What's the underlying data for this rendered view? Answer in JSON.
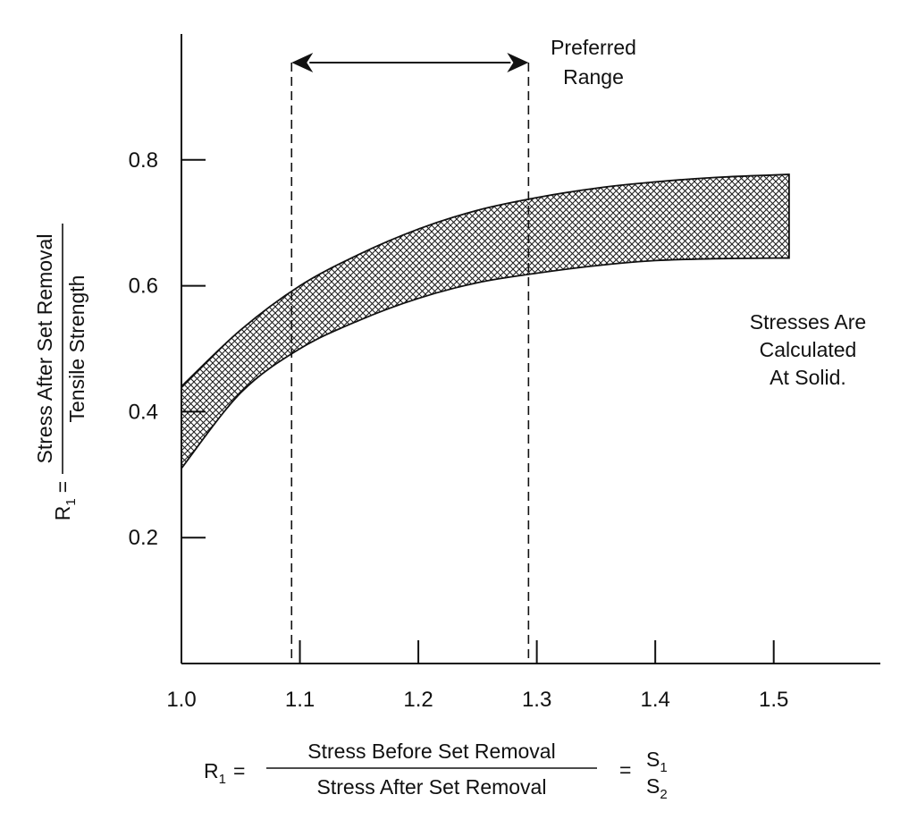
{
  "chart_data": {
    "type": "area",
    "x_ticks": [
      "1.0",
      "1.1",
      "1.2",
      "1.3",
      "1.4",
      "1.5"
    ],
    "y_ticks": [
      "0.2",
      "0.4",
      "0.6",
      "0.8"
    ],
    "xlim": [
      1.0,
      1.59
    ],
    "ylim": [
      0.0,
      1.0
    ],
    "grid": false,
    "band": {
      "x": [
        1.0,
        1.05,
        1.1,
        1.15,
        1.2,
        1.25,
        1.3,
        1.35,
        1.4,
        1.45,
        1.5,
        1.513
      ],
      "upper": [
        0.44,
        0.53,
        0.6,
        0.65,
        0.69,
        0.72,
        0.74,
        0.755,
        0.765,
        0.772,
        0.776,
        0.777
      ],
      "lower": [
        0.31,
        0.43,
        0.5,
        0.545,
        0.58,
        0.605,
        0.62,
        0.632,
        0.64,
        0.643,
        0.644,
        0.644
      ]
    },
    "preferred_range": [
      1.093,
      1.293
    ],
    "annotations": {
      "preferred_line1": "Preferred",
      "preferred_line2": "Range",
      "note_line1": "Stresses Are",
      "note_line2": "Calculated",
      "note_line3": "At Solid."
    },
    "ylabel": {
      "prefix": "R",
      "sub": "1",
      "eq": "=",
      "numerator": "Stress After Set Removal",
      "denominator": "Tensile Strength"
    },
    "xlabel": {
      "prefix": "R",
      "sub": "1",
      "eq": "=",
      "numerator": "Stress Before Set Removal",
      "denominator": "Stress After Set Removal",
      "eq2": "=",
      "s1": "S",
      "s1_sub": "1",
      "s2": "S",
      "s2_sub": "2"
    }
  }
}
